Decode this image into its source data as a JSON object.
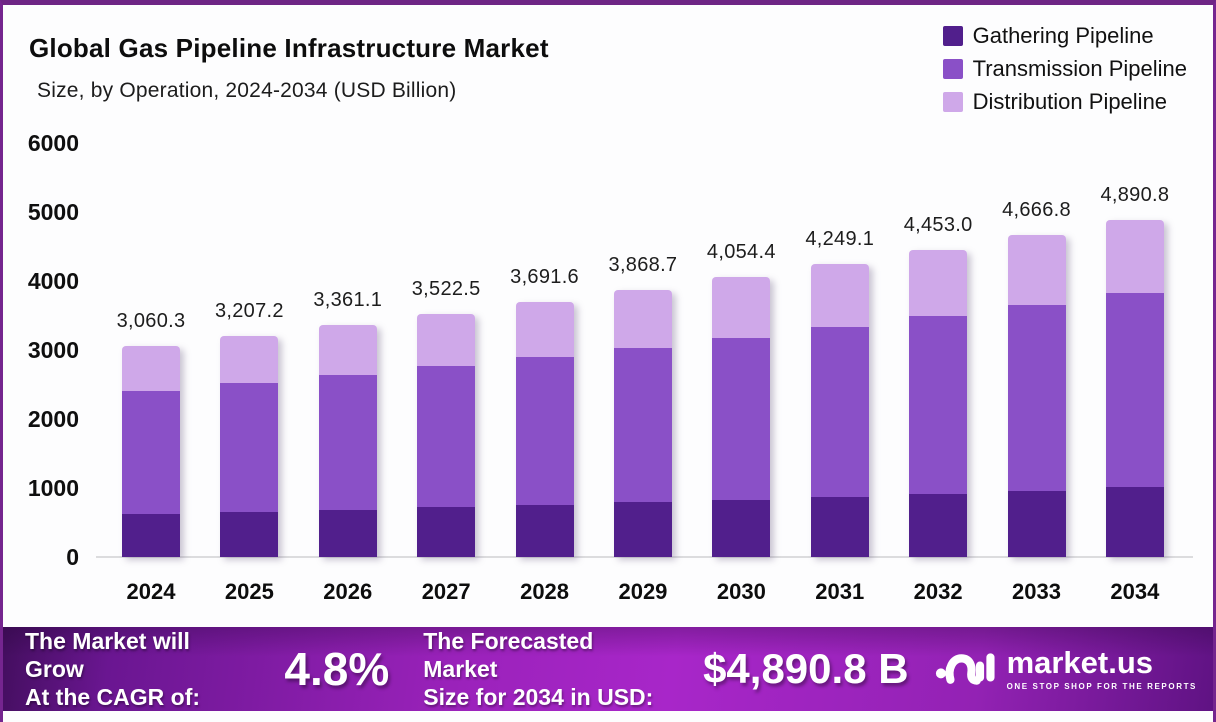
{
  "header": {
    "title": "Global Gas Pipeline Infrastructure Market",
    "subtitle": "Size, by Operation, 2024-2034 (USD Billion)"
  },
  "chart_data": {
    "type": "bar",
    "stacked": true,
    "title": "Global Gas Pipeline Infrastructure Market Size, by Operation, 2024-2034 (USD Billion)",
    "categories": [
      "2024",
      "2025",
      "2026",
      "2027",
      "2028",
      "2029",
      "2030",
      "2031",
      "2032",
      "2033",
      "2034"
    ],
    "series": [
      {
        "name": "Gathering Pipeline",
        "color": "#511f8c",
        "values": [
          620,
          651,
          684,
          718,
          754,
          792,
          831,
          873,
          917,
          962,
          1010
        ]
      },
      {
        "name": "Transmission Pipeline",
        "color": "#8a50c7",
        "values": [
          1780.3,
          1864.2,
          1951.1,
          2043.5,
          2139.6,
          2239.7,
          2345.4,
          2455.1,
          2570.0,
          2691.8,
          2818.8
        ]
      },
      {
        "name": "Distribution Pipeline",
        "color": "#cfa8e9",
        "values": [
          660,
          692,
          726,
          761,
          798,
          837,
          878,
          921,
          966,
          1013,
          1062
        ]
      }
    ],
    "totals": [
      3060.3,
      3207.2,
      3361.1,
      3522.5,
      3691.6,
      3868.7,
      4054.4,
      4249.1,
      4453.0,
      4666.8,
      4890.8
    ],
    "total_labels": [
      "3,060.3",
      "3,207.2",
      "3,361.1",
      "3,522.5",
      "3,691.6",
      "3,868.7",
      "4,054.4",
      "4,249.1",
      "4,453.0",
      "4,666.8",
      "4,890.8"
    ],
    "xlabel": "",
    "ylabel": "",
    "ylim": [
      0,
      6000
    ],
    "yticks": [
      0,
      1000,
      2000,
      3000,
      4000,
      5000,
      6000
    ],
    "grid": false,
    "legend_position": "top-right",
    "note": "Per-segment values are estimated from bar heights; only stack totals are labeled in the figure."
  },
  "footer": {
    "cagr_label_line1": "The Market will Grow",
    "cagr_label_line2": "At the CAGR of:",
    "cagr_value": "4.8%",
    "forecast_label_line1": "The Forecasted Market",
    "forecast_label_line2": "Size for 2034 in USD:",
    "forecast_value": "$4,890.8 B",
    "brand_name": "market.us",
    "brand_tagline": "ONE STOP SHOP FOR THE REPORTS"
  },
  "colors": {
    "frame_border": "#75258f",
    "axis_line": "#dcdcde",
    "bar_label_text": "#1d1d1d",
    "footer_gradient_dark": "#430e5e",
    "footer_gradient_bright": "#a826c9",
    "gathering": "#511f8c",
    "transmission": "#8a50c7",
    "distribution": "#cfa8e9"
  }
}
